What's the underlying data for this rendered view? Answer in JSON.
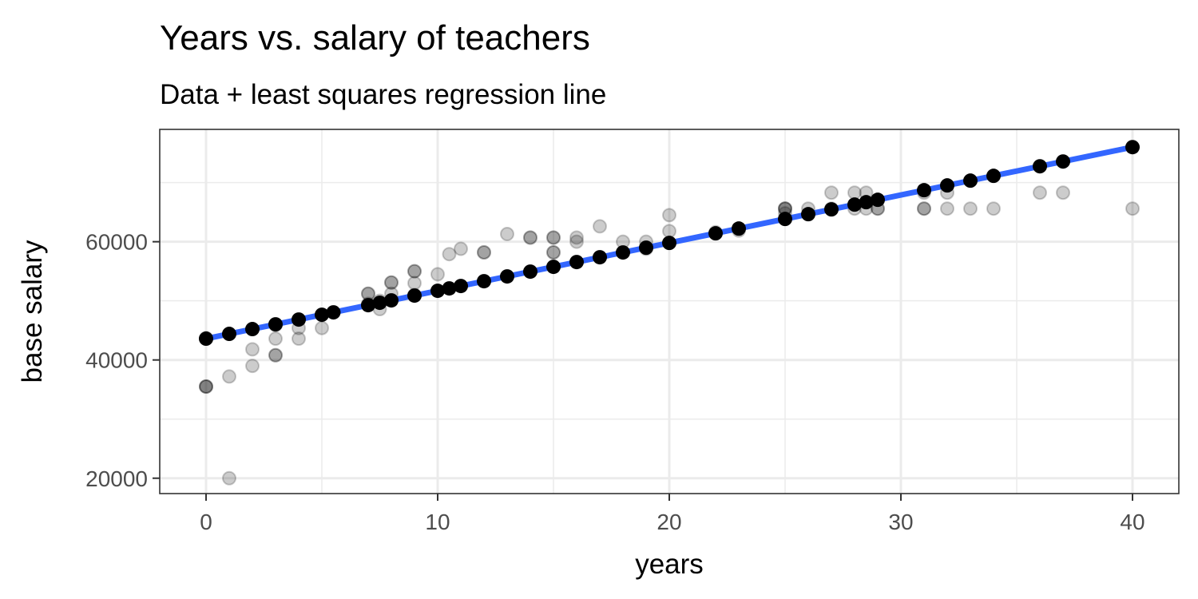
{
  "chart_data": {
    "type": "scatter",
    "title": "Years vs. salary of teachers",
    "subtitle": "Data + least squares regression line",
    "xlabel": "years",
    "ylabel": "base salary",
    "xlim": [
      -2,
      42
    ],
    "ylim": [
      17400,
      79000
    ],
    "x_ticks": [
      0,
      10,
      20,
      30,
      40
    ],
    "x_minor_ticks": [
      5,
      15,
      25,
      35
    ],
    "y_ticks": [
      20000,
      40000,
      60000
    ],
    "y_minor_ticks": [
      30000,
      50000,
      70000
    ],
    "grid": true,
    "regression_line": {
      "color": "#3366ff",
      "intercept": 43600,
      "slope": 810,
      "x_range": [
        0,
        40
      ]
    },
    "series": [
      {
        "kind": "observed",
        "color": "#000000",
        "opacity": 0.2,
        "points": [
          [
            0,
            35500
          ],
          [
            0,
            35500
          ],
          [
            0,
            35500
          ],
          [
            0,
            43700
          ],
          [
            1,
            20000
          ],
          [
            1,
            37200
          ],
          [
            2,
            39000
          ],
          [
            2,
            41800
          ],
          [
            3,
            40800
          ],
          [
            3,
            40800
          ],
          [
            3,
            43600
          ],
          [
            3,
            45900
          ],
          [
            4,
            43600
          ],
          [
            4,
            45400
          ],
          [
            5,
            45400
          ],
          [
            7,
            51200
          ],
          [
            7,
            51200
          ],
          [
            7,
            49500
          ],
          [
            7.5,
            48600
          ],
          [
            7.5,
            50000
          ],
          [
            8,
            53100
          ],
          [
            8,
            53100
          ],
          [
            8,
            51200
          ],
          [
            9,
            55000
          ],
          [
            9,
            55000
          ],
          [
            9,
            53000
          ],
          [
            9,
            51000
          ],
          [
            10,
            54500
          ],
          [
            10.5,
            57900
          ],
          [
            11,
            58800
          ],
          [
            12,
            58200
          ],
          [
            12,
            58200
          ],
          [
            13,
            61300
          ],
          [
            14,
            60700
          ],
          [
            14,
            60700
          ],
          [
            15,
            60700
          ],
          [
            15,
            60700
          ],
          [
            15,
            58200
          ],
          [
            15,
            58200
          ],
          [
            16,
            60700
          ],
          [
            16,
            60000
          ],
          [
            17,
            62600
          ],
          [
            18,
            60000
          ],
          [
            19,
            60000
          ],
          [
            19,
            58800
          ],
          [
            20,
            64500
          ],
          [
            20,
            61800
          ],
          [
            22,
            61600
          ],
          [
            23,
            61900
          ],
          [
            25,
            65600
          ],
          [
            25,
            65600
          ],
          [
            25,
            65600
          ],
          [
            25,
            64800
          ],
          [
            26,
            65600
          ],
          [
            27,
            68300
          ],
          [
            27,
            65600
          ],
          [
            28,
            68300
          ],
          [
            28,
            65600
          ],
          [
            28.5,
            68300
          ],
          [
            28.5,
            65600
          ],
          [
            29,
            65600
          ],
          [
            29,
            65600
          ],
          [
            31,
            65600
          ],
          [
            31,
            65600
          ],
          [
            31,
            68300
          ],
          [
            32,
            68300
          ],
          [
            32,
            65600
          ],
          [
            33,
            65600
          ],
          [
            34,
            65600
          ],
          [
            36,
            68300
          ],
          [
            37,
            68300
          ],
          [
            40,
            65600
          ]
        ]
      },
      {
        "kind": "fitted",
        "color": "#000000",
        "opacity": 1,
        "x": [
          0,
          1,
          2,
          3,
          4,
          5,
          5.5,
          7,
          7.5,
          8,
          9,
          10,
          10.5,
          11,
          12,
          13,
          14,
          15,
          16,
          17,
          18,
          19,
          20,
          22,
          23,
          25,
          26,
          27,
          28,
          28.5,
          29,
          31,
          32,
          33,
          34,
          36,
          37,
          40
        ]
      }
    ]
  }
}
